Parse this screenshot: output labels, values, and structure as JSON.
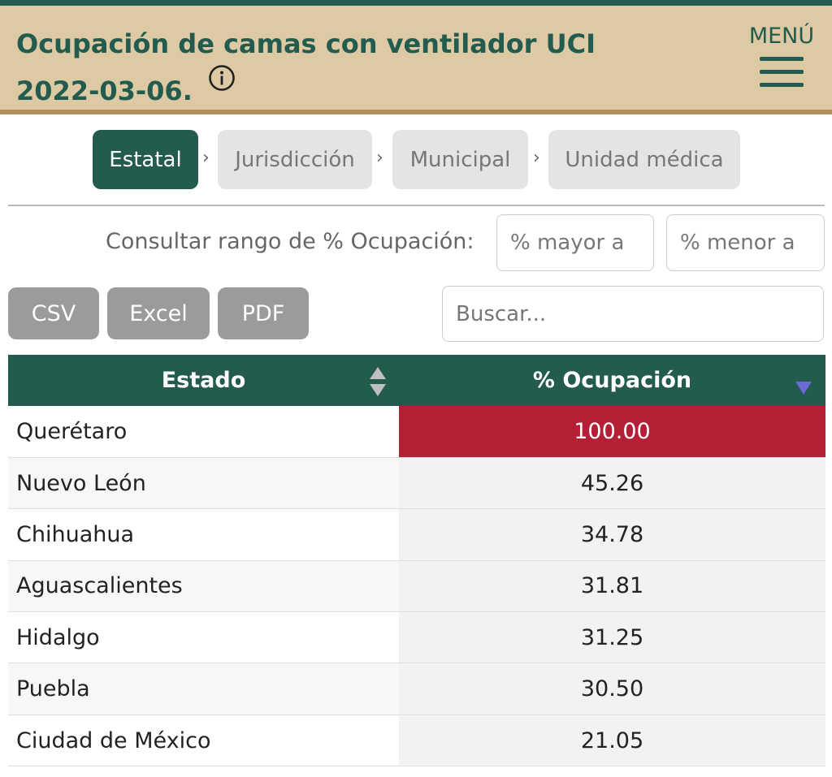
{
  "header": {
    "title_line1": "Ocupación de camas con ventilador UCI",
    "title_line2": "2022-03-06.",
    "menu_label": "MENÚ",
    "info_icon": "info-circle-icon",
    "menu_icon": "hamburger-menu-icon",
    "colors": {
      "green": "#235b4e",
      "gold": "#ddc9a3",
      "accent_line": "#b38e5d"
    }
  },
  "breadcrumbs": {
    "items": [
      {
        "label": "Estatal",
        "active": true
      },
      {
        "label": "Jurisdicción",
        "active": false
      },
      {
        "label": "Municipal",
        "active": false
      },
      {
        "label": "Unidad médica",
        "active": false
      }
    ],
    "separator": "›"
  },
  "filter": {
    "label": "Consultar rango de % Ocupación:",
    "min_placeholder": "% mayor a",
    "max_placeholder": "% menor a"
  },
  "export": {
    "csv": "CSV",
    "excel": "Excel",
    "pdf": "PDF"
  },
  "search": {
    "placeholder": "Buscar..."
  },
  "table": {
    "columns": [
      "Estado",
      "% Ocupación"
    ],
    "sort_icons": {
      "estado": "sort-both-icon",
      "ocupacion": "sort-desc-icon"
    },
    "highlight_color": "#b51f35",
    "rows": [
      {
        "estado": "Querétaro",
        "ocupacion": "100.00",
        "highlight": true
      },
      {
        "estado": "Nuevo León",
        "ocupacion": "45.26",
        "highlight": false
      },
      {
        "estado": "Chihuahua",
        "ocupacion": "34.78",
        "highlight": false
      },
      {
        "estado": "Aguascalientes",
        "ocupacion": "31.81",
        "highlight": false
      },
      {
        "estado": "Hidalgo",
        "ocupacion": "31.25",
        "highlight": false
      },
      {
        "estado": "Puebla",
        "ocupacion": "30.50",
        "highlight": false
      },
      {
        "estado": "Ciudad de México",
        "ocupacion": "21.05",
        "highlight": false
      }
    ]
  }
}
